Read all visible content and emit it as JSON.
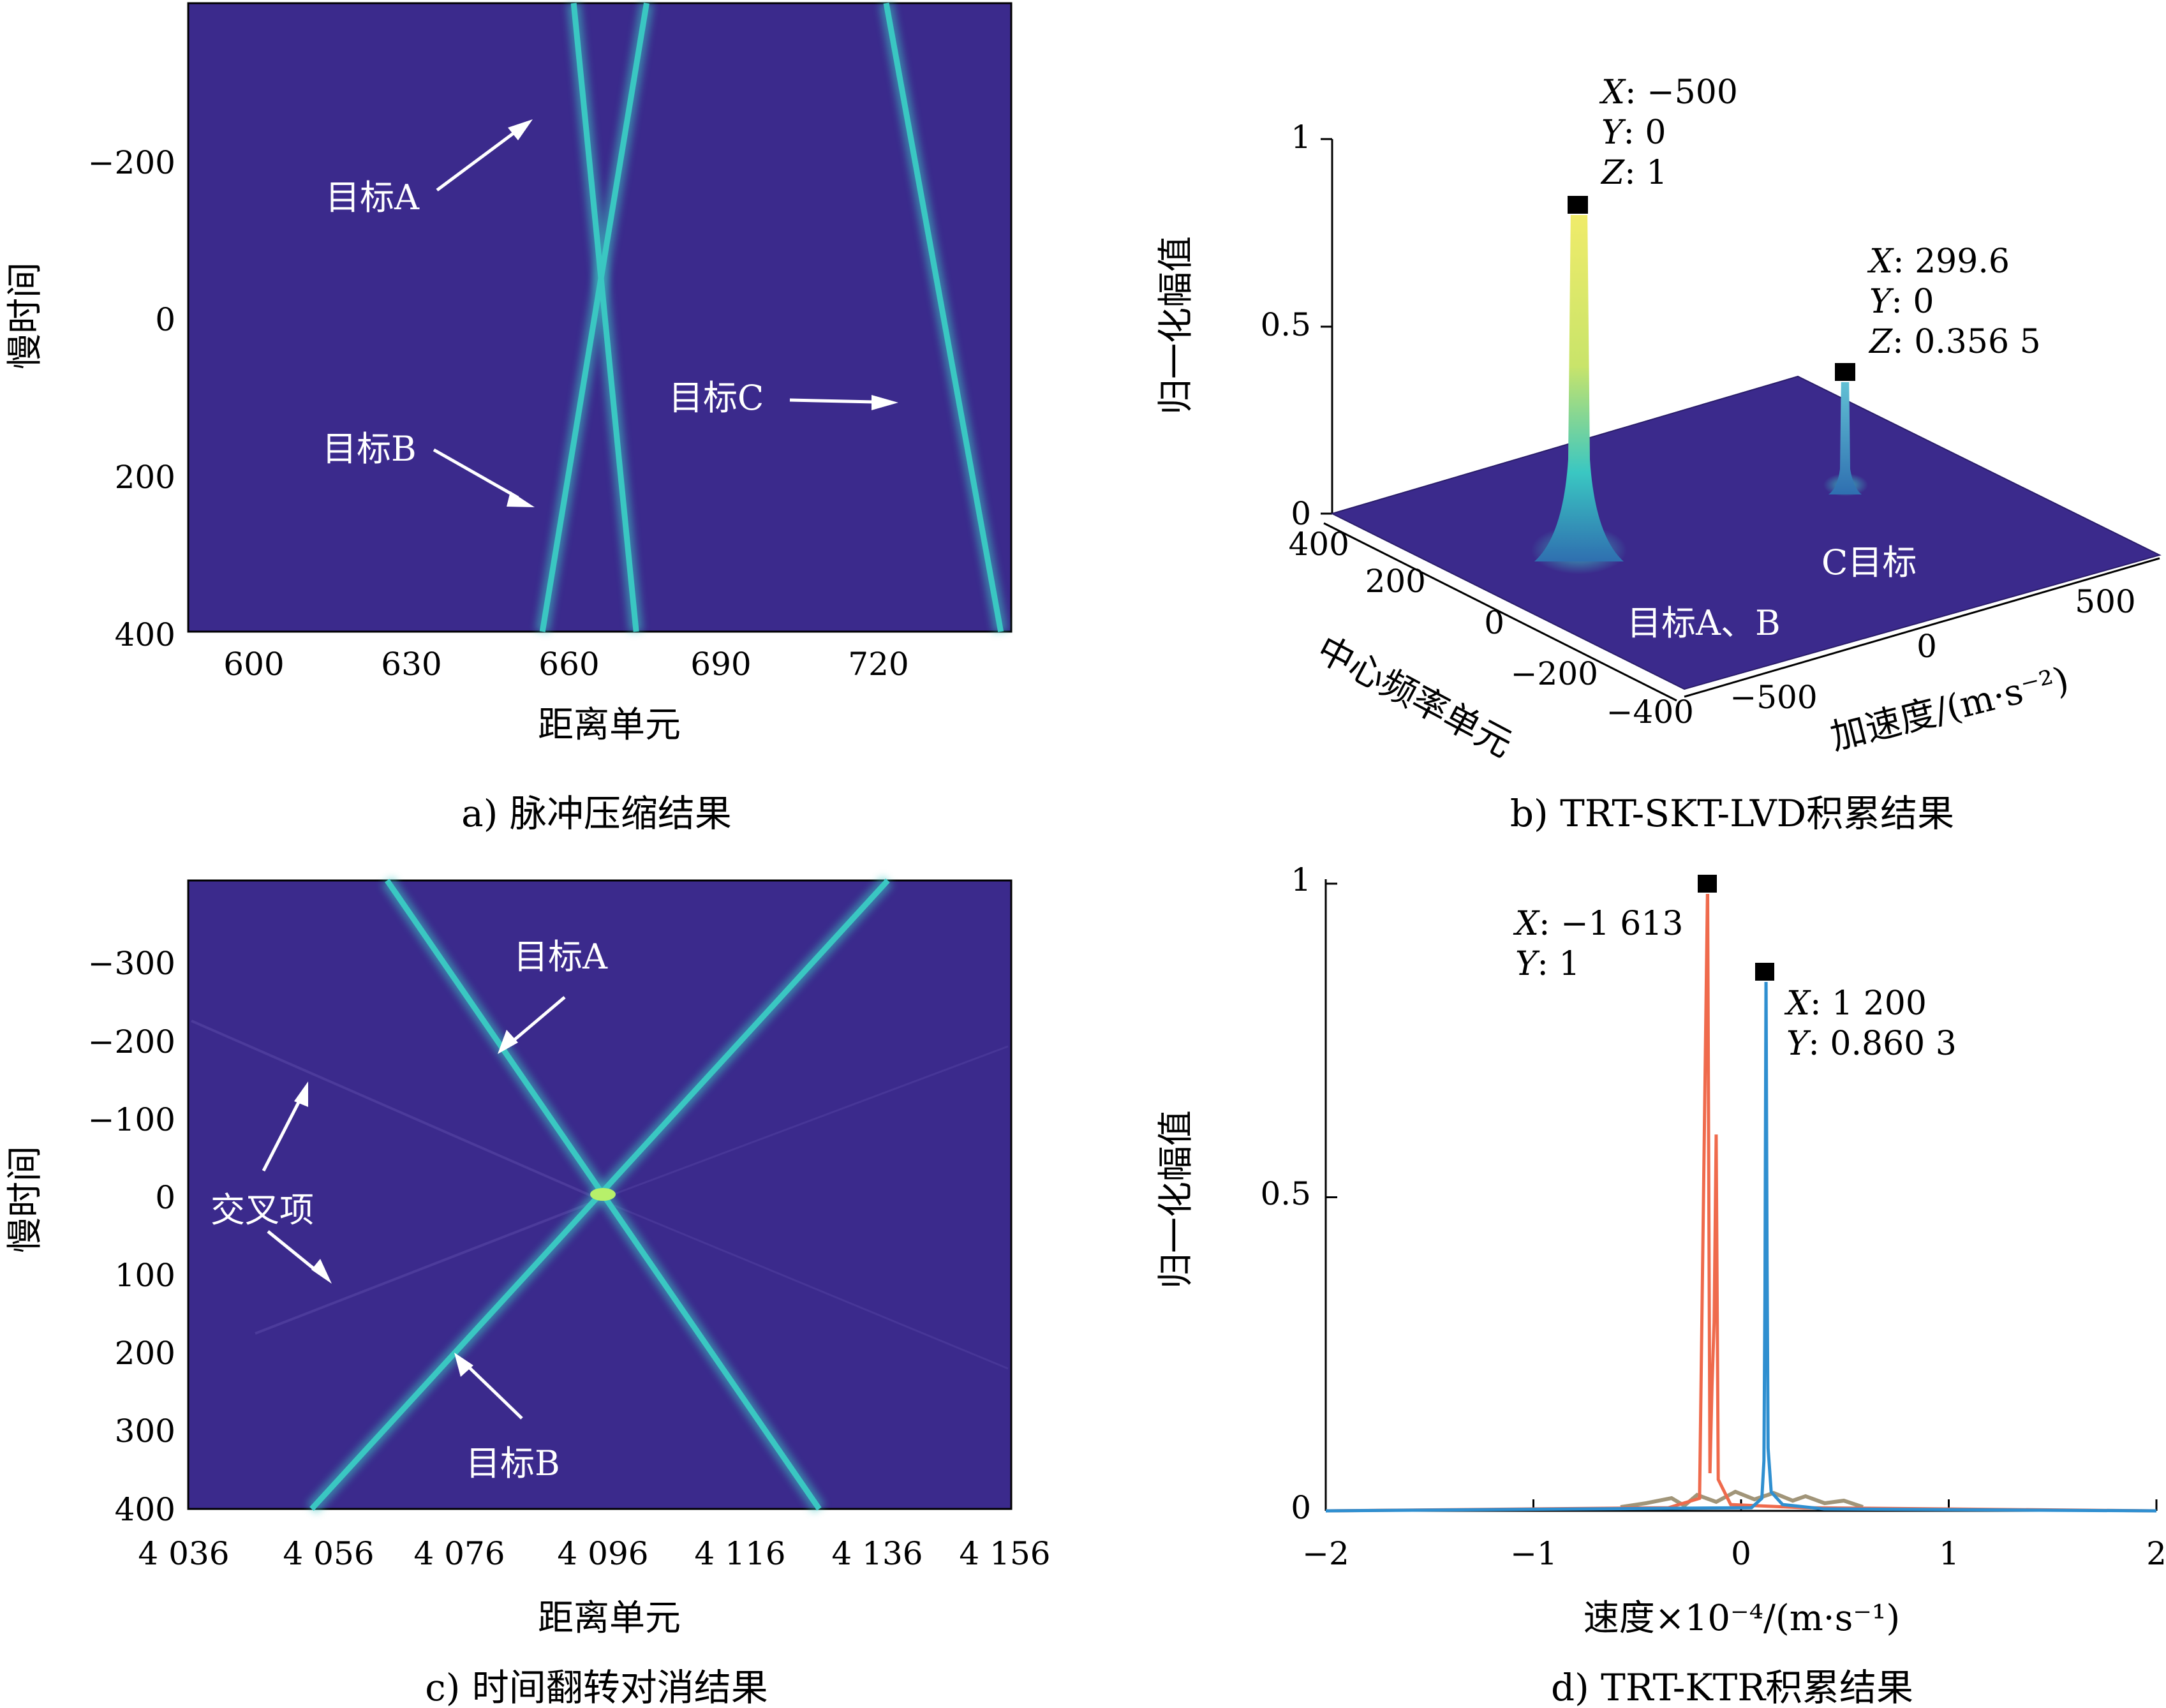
{
  "colors": {
    "background": "#3b2a8c",
    "trace": "#3ac7c2",
    "trace_bright": "#b7f06a",
    "peak_ab": "#e8e26a",
    "series_red": "#ef6a4c",
    "series_blue": "#2f8fd0",
    "frame": "#000000"
  },
  "chart_data": [
    {
      "id": "a",
      "type": "heatmap",
      "caption": "a) 脉冲压缩结果",
      "xlabel": "距离单元",
      "ylabel": "慢时间",
      "xticks": [
        "600",
        "630",
        "660",
        "690",
        "720"
      ],
      "yticks": [
        "−200",
        "0",
        "200",
        "400"
      ],
      "xlim": [
        590,
        748
      ],
      "ylim": [
        -400,
        400
      ],
      "y_reversed": true,
      "lines": [
        {
          "name": "目标A",
          "x_at_ymin": 664,
          "x_at_ymax": 676
        },
        {
          "name": "目标B",
          "x_at_ymin": 678,
          "x_at_ymax": 658
        },
        {
          "name": "目标C",
          "x_at_ymin": 724,
          "x_at_ymax": 746
        }
      ],
      "annotations": [
        "目标A",
        "目标B",
        "目标C"
      ]
    },
    {
      "id": "b",
      "type": "surface",
      "caption": "b) TRT-SKT-LVD积累结果",
      "xlabel": "加速度/(m·s⁻²)",
      "ylabel": "中心频率单元",
      "zlabel": "归一化幅值",
      "xticks": [
        "−500",
        "0",
        "500"
      ],
      "yticks": [
        "−400",
        "−200",
        "0",
        "200",
        "400"
      ],
      "zticks": [
        "0",
        "0.5",
        "1"
      ],
      "peaks": [
        {
          "label": "目标A、B",
          "x": -500,
          "y": 0,
          "z": 1
        },
        {
          "label": "C目标",
          "x": 299.6,
          "y": 0,
          "z": 0.3565
        }
      ],
      "datatips": [
        {
          "line1_key": "X",
          "line1_val": ": −500",
          "line2_key": "Y",
          "line2_val": ": 0",
          "line3_key": "Z",
          "line3_val": ": 1"
        },
        {
          "line1_key": "X",
          "line1_val": ": 299.6",
          "line2_key": "Y",
          "line2_val": ": 0",
          "line3_key": "Z",
          "line3_val": ": 0.356 5"
        }
      ],
      "annotations": [
        "目标A、B",
        "C目标"
      ]
    },
    {
      "id": "c",
      "type": "heatmap",
      "caption": "c) 时间翻转对消结果",
      "xlabel": "距离单元",
      "ylabel": "慢时间",
      "xticks": [
        "4 036",
        "4 056",
        "4 076",
        "4 096",
        "4 116",
        "4 136",
        "4 156"
      ],
      "yticks": [
        "−300",
        "−200",
        "−100",
        "0",
        "100",
        "200",
        "300",
        "400"
      ],
      "xlim": [
        4036,
        4156
      ],
      "ylim": [
        -400,
        400
      ],
      "y_reversed": true,
      "lines": [
        {
          "name": "目标A",
          "x_at_ymin": 4065,
          "x_at_ymax": 4128
        },
        {
          "name": "目标B",
          "x_at_ymin": 4138,
          "x_at_ymax": 4054
        }
      ],
      "annotations": [
        "目标A",
        "目标B",
        "交叉项"
      ]
    },
    {
      "id": "d",
      "type": "line",
      "caption": "d) TRT-KTR积累结果",
      "xlabel": "速度×10⁻⁴/(m·s⁻¹)",
      "ylabel": "归一化幅值",
      "xticks": [
        "−2",
        "−1",
        "0",
        "1",
        "2"
      ],
      "yticks": [
        "0",
        "0.5",
        "1"
      ],
      "xlim": [
        -2,
        2
      ],
      "ylim": [
        0,
        1
      ],
      "series": [
        {
          "color": "red",
          "x": [
            -2,
            -0.35,
            -0.2,
            -0.15,
            -0.13,
            -0.12,
            -0.1613,
            -0.14,
            -0.11,
            -0.05,
            0.3,
            2
          ],
          "y": [
            0,
            0.005,
            0.02,
            0.06,
            0.3,
            0.6,
            1,
            0.2,
            0.05,
            0.01,
            0.005,
            0
          ]
        },
        {
          "color": "blue",
          "x": [
            -2,
            0.05,
            0.1,
            0.11,
            0.115,
            0.12,
            0.125,
            0.13,
            0.145,
            0.2,
            0.4,
            2
          ],
          "y": [
            0,
            0.005,
            0.02,
            0.08,
            0.35,
            0.8603,
            0.4,
            0.1,
            0.03,
            0.01,
            0.003,
            0
          ]
        }
      ],
      "datatips": [
        {
          "line1_key": "X",
          "line1_val": ": −1 613",
          "line2_key": "Y",
          "line2_val": ": 1"
        },
        {
          "line1_key": "X",
          "line1_val": ": 1 200",
          "line2_key": "Y",
          "line2_val": ": 0.860 3"
        }
      ]
    }
  ]
}
